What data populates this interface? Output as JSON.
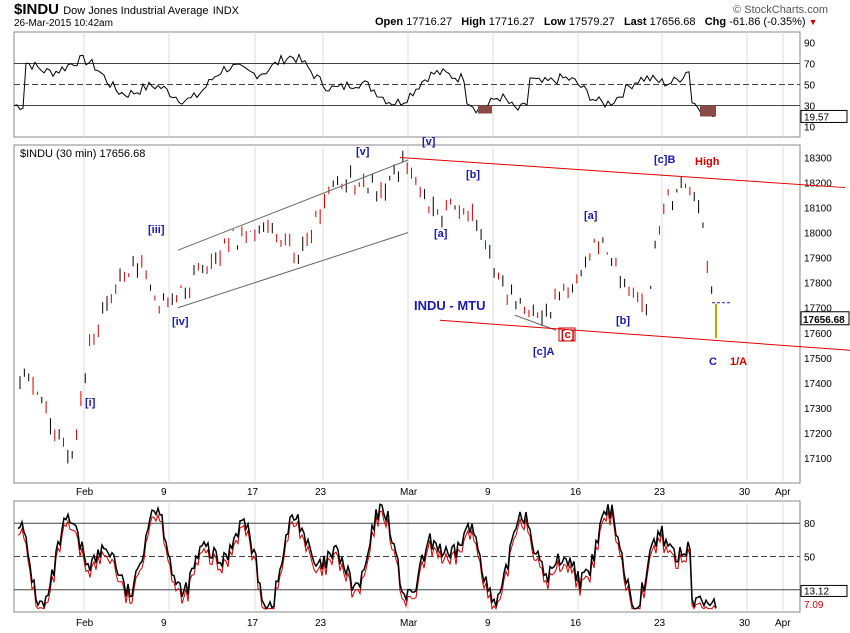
{
  "header": {
    "symbol": "$INDU",
    "name": "Dow Jones Industrial Average",
    "exchange": "INDX",
    "datetime": "26-Mar-2015 10:42am",
    "open_label": "Open",
    "open": "17716.27",
    "high_label": "High",
    "high": "17716.27",
    "low_label": "Low",
    "low": "17579.27",
    "last_label": "Last",
    "last": "17656.68",
    "chg_label": "Chg",
    "chg": "-61.86 (-0.35%)",
    "brand": "© StockCharts.com"
  },
  "main_legend": "$INDU (30 min) 17656.68",
  "price_tag": "17656.68",
  "rsi_tag": "19.57",
  "stoch_tags": [
    "13.12",
    "7.09"
  ],
  "colors": {
    "up": "#000000",
    "down": "#cc0000",
    "wave_blue": "#1a1aaa",
    "wave_red": "#cc0000",
    "channel_red": "#e00000",
    "channel_gray": "#555555"
  },
  "chart_data": [
    {
      "type": "line",
      "panel": "RSI",
      "ylim": [
        0,
        100
      ],
      "yticks": [
        "90",
        "70",
        "50",
        "30",
        "10"
      ],
      "levels": [
        70,
        50,
        30
      ],
      "last_value": 19.57
    },
    {
      "type": "candlestick",
      "panel": "price",
      "title": "$INDU (30 min) 17656.68",
      "ylim": [
        17000,
        18350
      ],
      "yticks": [
        "18300",
        "18200",
        "18100",
        "18000",
        "17900",
        "17800",
        "17700",
        "17600",
        "17500",
        "17400",
        "17300",
        "17200",
        "17100"
      ],
      "xticks": [
        "Feb",
        "9",
        "17",
        "23",
        "Mar",
        "9",
        "16",
        "23",
        "30",
        "Apr"
      ],
      "series": [
        {
          "x": [
            "Jan28",
            "Jan29",
            "Jan30",
            "Feb2",
            "Feb3",
            "Feb4",
            "Feb5",
            "Feb6",
            "Feb9",
            "Feb10",
            "Feb11",
            "Feb12",
            "Feb13",
            "Feb17",
            "Feb18",
            "Feb19",
            "Feb20",
            "Feb23",
            "Feb24",
            "Feb25",
            "Feb26",
            "Feb27",
            "Mar2",
            "Mar3",
            "Mar4",
            "Mar5",
            "Mar6",
            "Mar9",
            "Mar10",
            "Mar11",
            "Mar12",
            "Mar13",
            "Mar16",
            "Mar17",
            "Mar18",
            "Mar19",
            "Mar20",
            "Mar23",
            "Mar24",
            "Mar25",
            "Mar26"
          ],
          "values": [
            17420,
            17350,
            17200,
            17100,
            17550,
            17700,
            17850,
            17880,
            17720,
            17730,
            17820,
            17880,
            17960,
            18010,
            18020,
            17980,
            17900,
            18050,
            18180,
            18220,
            18200,
            18150,
            18290,
            18150,
            18080,
            18120,
            18070,
            17900,
            17760,
            17690,
            17640,
            17760,
            17810,
            17950,
            17890,
            17740,
            17720,
            18100,
            18190,
            18120,
            17657
          ]
        }
      ],
      "annotations": [
        {
          "text": "[i]",
          "x": "Feb1",
          "y": 17330
        },
        {
          "text": "[iii]",
          "x": "Feb6",
          "y": 17990
        },
        {
          "text": "[iv]",
          "x": "Feb9",
          "y": 17630
        },
        {
          "text": "[v]",
          "x": "Feb27",
          "y": 18290
        },
        {
          "text": "[v]",
          "x": "Mar2",
          "y": 18340
        },
        {
          "text": "[a]",
          "x": "Mar3",
          "y": 17980
        },
        {
          "text": "[b]",
          "x": "Mar6",
          "y": 18200
        },
        {
          "text": "[c]A",
          "x": "Mar13",
          "y": 17510
        },
        {
          "text": "[c]",
          "x": "Mar13",
          "y": 17580
        },
        {
          "text": "[a]",
          "x": "Mar17",
          "y": 18040
        },
        {
          "text": "[b]",
          "x": "Mar20",
          "y": 17630
        },
        {
          "text": "[c]B",
          "x": "Mar23",
          "y": 18260
        },
        {
          "text": "High",
          "x": "Mar24",
          "y": 18260
        },
        {
          "text": "C",
          "x": "Mar26",
          "y": 17480
        },
        {
          "text": "1/A",
          "x": "Mar27",
          "y": 17480
        },
        {
          "text": "INDU - MTU",
          "x": "Mar6",
          "y": 17690
        }
      ]
    },
    {
      "type": "line",
      "panel": "stochastic",
      "ylim": [
        0,
        100
      ],
      "yticks": [
        "80",
        "50",
        "20"
      ],
      "levels": [
        80,
        50,
        20
      ],
      "series": [
        {
          "name": "%K",
          "values": [
            13.12
          ]
        },
        {
          "name": "%D",
          "values": [
            7.09
          ]
        }
      ]
    }
  ]
}
